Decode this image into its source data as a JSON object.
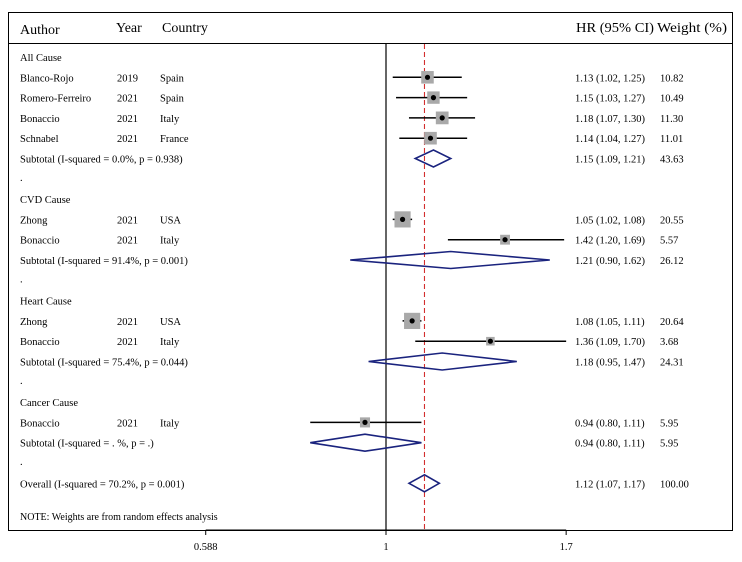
{
  "header": {
    "author": "Author",
    "year": "Year",
    "country": "Country",
    "hr": "HR (95% CI)",
    "weight": "Weight (%)"
  },
  "note": "NOTE: Weights are from random effects analysis",
  "chart_data": {
    "type": "forest",
    "x_scale": "log",
    "reference_line": 1,
    "overall_line": 1.12,
    "xticks": [
      {
        "value": 0.588,
        "label": "0.588"
      },
      {
        "value": 1,
        "label": "1"
      },
      {
        "value": 1.7,
        "label": "1.7"
      }
    ],
    "groups": [
      {
        "title": "All Cause",
        "studies": [
          {
            "author": "Blanco-Rojo",
            "year": "2019",
            "country": "Spain",
            "hr": 1.13,
            "lo": 1.02,
            "hi": 1.25,
            "hr_text": "1.13 (1.02, 1.25)",
            "weight": "10.82"
          },
          {
            "author": "Romero-Ferreiro",
            "year": "2021",
            "country": "Spain",
            "hr": 1.15,
            "lo": 1.03,
            "hi": 1.27,
            "hr_text": "1.15 (1.03, 1.27)",
            "weight": "10.49"
          },
          {
            "author": "Bonaccio",
            "year": "2021",
            "country": "Italy",
            "hr": 1.18,
            "lo": 1.07,
            "hi": 1.3,
            "hr_text": "1.18 (1.07, 1.30)",
            "weight": "11.30"
          },
          {
            "author": "Schnabel",
            "year": "2021",
            "country": "France",
            "hr": 1.14,
            "lo": 1.04,
            "hi": 1.27,
            "hr_text": "1.14 (1.04, 1.27)",
            "weight": "11.01"
          }
        ],
        "subtotal": {
          "label": "Subtotal (I-squared = 0.0%, p = 0.938)",
          "hr": 1.15,
          "lo": 1.09,
          "hi": 1.21,
          "hr_text": "1.15 (1.09, 1.21)",
          "weight": "43.63"
        }
      },
      {
        "title": "CVD Cause",
        "studies": [
          {
            "author": "Zhong",
            "year": "2021",
            "country": "USA",
            "hr": 1.05,
            "lo": 1.02,
            "hi": 1.08,
            "hr_text": "1.05 (1.02, 1.08)",
            "weight": "20.55"
          },
          {
            "author": "Bonaccio",
            "year": "2021",
            "country": "Italy",
            "hr": 1.42,
            "lo": 1.2,
            "hi": 1.69,
            "hr_text": "1.42 (1.20, 1.69)",
            "weight": "5.57"
          }
        ],
        "subtotal": {
          "label": "Subtotal (I-squared = 91.4%, p = 0.001)",
          "hr": 1.21,
          "lo": 0.9,
          "hi": 1.62,
          "hr_text": "1.21 (0.90, 1.62)",
          "weight": "26.12"
        }
      },
      {
        "title": "Heart Cause",
        "studies": [
          {
            "author": "Zhong",
            "year": "2021",
            "country": "USA",
            "hr": 1.08,
            "lo": 1.05,
            "hi": 1.11,
            "hr_text": "1.08 (1.05, 1.11)",
            "weight": "20.64"
          },
          {
            "author": "Bonaccio",
            "year": "2021",
            "country": "Italy",
            "hr": 1.36,
            "lo": 1.09,
            "hi": 1.7,
            "hr_text": "1.36 (1.09, 1.70)",
            "weight": "3.68"
          }
        ],
        "subtotal": {
          "label": "Subtotal (I-squared = 75.4%, p = 0.044)",
          "hr": 1.18,
          "lo": 0.95,
          "hi": 1.47,
          "hr_text": "1.18 (0.95, 1.47)",
          "weight": "24.31"
        }
      },
      {
        "title": "Cancer Cause",
        "studies": [
          {
            "author": "Bonaccio",
            "year": "2021",
            "country": "Italy",
            "hr": 0.94,
            "lo": 0.8,
            "hi": 1.11,
            "hr_text": "0.94 (0.80, 1.11)",
            "weight": "5.95"
          }
        ],
        "subtotal": {
          "label": "Subtotal (I-squared = . %, p = .)",
          "hr": 0.94,
          "lo": 0.8,
          "hi": 1.11,
          "hr_text": "0.94 (0.80, 1.11)",
          "weight": "5.95"
        }
      }
    ],
    "overall": {
      "label": "Overall (I-squared = 70.2%, p = 0.001)",
      "hr": 1.12,
      "lo": 1.07,
      "hi": 1.17,
      "hr_text": "1.12 (1.07, 1.17)",
      "weight": "100.00"
    },
    "colors": {
      "diamond": "#1a237e",
      "overall_line": "#d32f2f",
      "box": "#a9a9a9",
      "line": "#000000"
    }
  }
}
